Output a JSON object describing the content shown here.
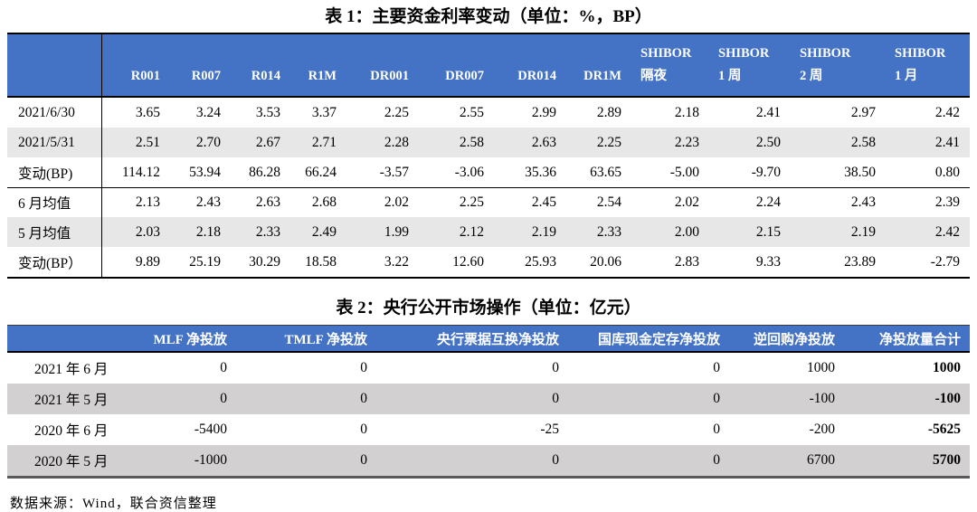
{
  "colors": {
    "header_blue": "#4472C4",
    "table1_stripe": "#E8E7E7",
    "table2_stripe": "#D2D0D0"
  },
  "table1": {
    "title": "表 1：主要资金利率变动（单位：%，BP）",
    "columns": [
      {
        "label": "R001"
      },
      {
        "label": "R007"
      },
      {
        "label": "R014"
      },
      {
        "label": "R1M"
      },
      {
        "label": "DR001"
      },
      {
        "label": "DR007"
      },
      {
        "label": "DR014"
      },
      {
        "label": "DR1M"
      },
      {
        "label": "SHIBOR",
        "sub": "隔夜"
      },
      {
        "label": "SHIBOR",
        "sub": "1 周"
      },
      {
        "label": "SHIBOR",
        "sub": "2 周"
      },
      {
        "label": "SHIBOR",
        "sub": "1 月"
      }
    ],
    "rows": [
      {
        "label": "2021/6/30",
        "values": [
          "3.65",
          "3.24",
          "3.53",
          "3.37",
          "2.25",
          "2.55",
          "2.99",
          "2.89",
          "2.18",
          "2.41",
          "2.97",
          "2.42"
        ]
      },
      {
        "label": "2021/5/31",
        "values": [
          "2.51",
          "2.70",
          "2.67",
          "2.71",
          "2.28",
          "2.58",
          "2.63",
          "2.25",
          "2.23",
          "2.50",
          "2.58",
          "2.41"
        ]
      },
      {
        "label": "变动(BP)",
        "values": [
          "114.12",
          "53.94",
          "86.28",
          "66.24",
          "-3.57",
          "-3.06",
          "35.36",
          "63.65",
          "-5.00",
          "-9.70",
          "38.50",
          "0.80"
        ]
      },
      {
        "label": "6 月均值",
        "values": [
          "2.13",
          "2.43",
          "2.63",
          "2.68",
          "2.02",
          "2.25",
          "2.45",
          "2.54",
          "2.02",
          "2.24",
          "2.43",
          "2.39"
        ]
      },
      {
        "label": "5 月均值",
        "values": [
          "2.03",
          "2.18",
          "2.33",
          "2.49",
          "1.99",
          "2.12",
          "2.19",
          "2.33",
          "2.00",
          "2.15",
          "2.19",
          "2.42"
        ]
      },
      {
        "label": "变动(BP）",
        "values": [
          "9.89",
          "25.19",
          "30.29",
          "18.58",
          "3.22",
          "12.60",
          "25.93",
          "20.06",
          "2.83",
          "9.33",
          "23.89",
          "-2.79"
        ]
      }
    ]
  },
  "table2": {
    "title": "表 2：央行公开市场操作（单位：亿元）",
    "columns": [
      "MLF 净投放",
      "TMLF 净投放",
      "央行票据互换净投放",
      "国库现金定存净投放",
      "逆回购净投放",
      "净投放量合计"
    ],
    "rows": [
      {
        "label": "2021 年 6 月",
        "values": [
          "0",
          "0",
          "0",
          "0",
          "1000"
        ],
        "total": "1000"
      },
      {
        "label": "2021 年 5 月",
        "values": [
          "0",
          "0",
          "0",
          "0",
          "-100"
        ],
        "total": "-100"
      },
      {
        "label": "2020 年 6 月",
        "values": [
          "-5400",
          "0",
          "-25",
          "0",
          "-200"
        ],
        "total": "-5625"
      },
      {
        "label": "2020 年 5 月",
        "values": [
          "-1000",
          "0",
          "0",
          "0",
          "6700"
        ],
        "total": "5700"
      }
    ]
  },
  "footer": {
    "source": "数据来源：Wind，联合资信整理"
  }
}
